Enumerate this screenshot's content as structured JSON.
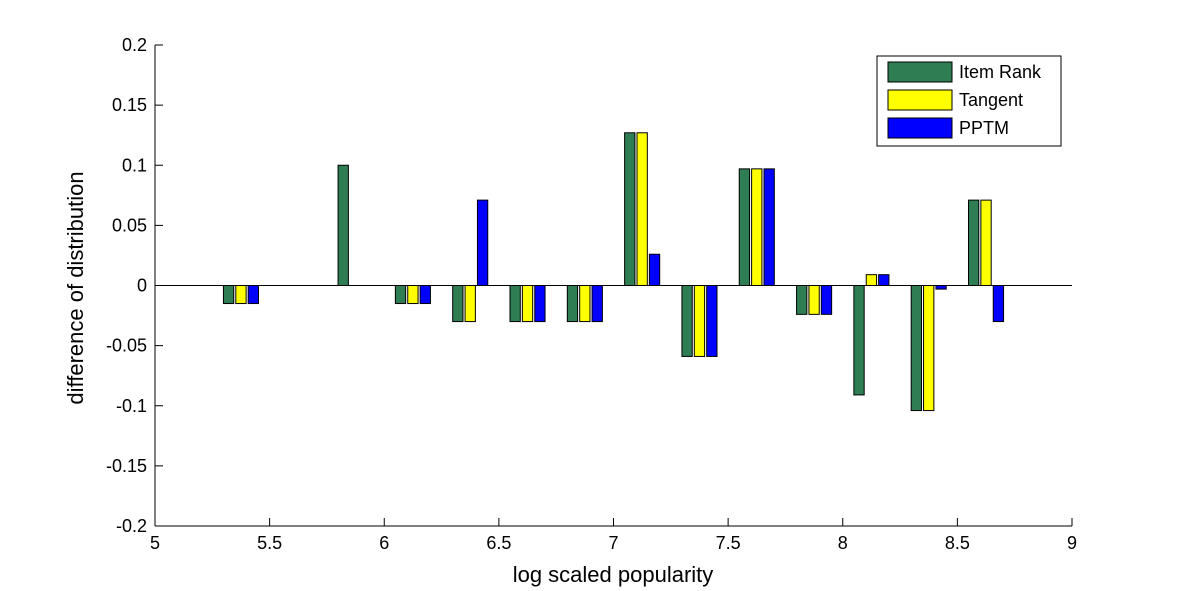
{
  "chart_data": {
    "type": "bar",
    "title": "",
    "xlabel": "log scaled popularity",
    "ylabel": "difference of distribution",
    "xlim": [
      5,
      9
    ],
    "ylim": [
      -0.2,
      0.2
    ],
    "xticks": [
      "5",
      "5.5",
      "6",
      "6.5",
      "7",
      "7.5",
      "8",
      "8.5",
      "9"
    ],
    "yticks": [
      "-0.2",
      "-0.15",
      "-0.1",
      "-0.05",
      "0",
      "0.05",
      "0.1",
      "0.15",
      "0.2"
    ],
    "grid": false,
    "legend_position": "top-right",
    "bar_width": 0.045,
    "x": [
      5.375,
      5.625,
      5.875,
      6.125,
      6.375,
      6.625,
      6.875,
      7.125,
      7.375,
      7.625,
      7.875,
      8.125,
      8.375,
      8.625
    ],
    "series": [
      {
        "name": "Item Rank",
        "color": "#2e7d53",
        "values": [
          -0.015,
          0,
          0.1,
          -0.015,
          -0.03,
          -0.03,
          -0.03,
          0.127,
          -0.059,
          0.097,
          -0.024,
          -0.091,
          -0.104,
          0.071
        ]
      },
      {
        "name": "Tangent",
        "color": "#ffff00",
        "values": [
          -0.015,
          0,
          0,
          -0.015,
          -0.03,
          -0.03,
          -0.03,
          0.127,
          -0.059,
          0.097,
          -0.024,
          0.009,
          -0.104,
          0.071
        ]
      },
      {
        "name": "PPTM",
        "color": "#0000ff",
        "values": [
          -0.015,
          0,
          0,
          -0.015,
          0.071,
          -0.03,
          -0.03,
          0.026,
          -0.059,
          0.097,
          -0.024,
          0.009,
          -0.003,
          -0.03
        ]
      }
    ]
  }
}
